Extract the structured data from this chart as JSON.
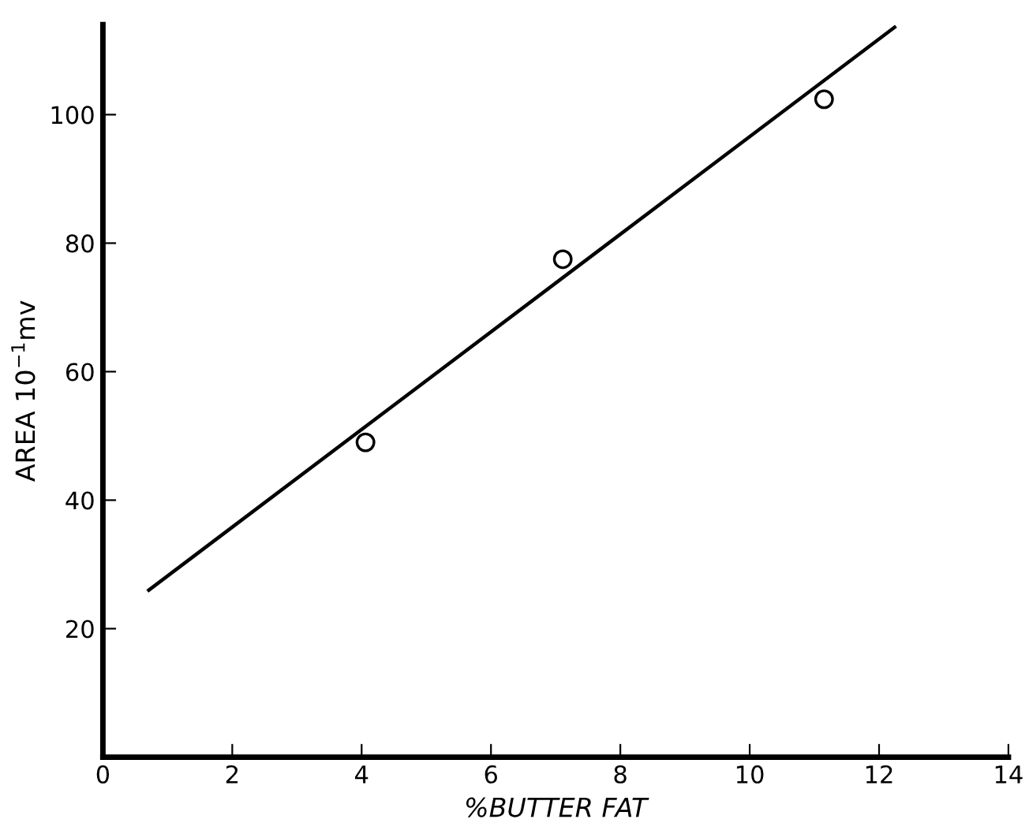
{
  "chart_data": {
    "type": "scatter",
    "xlabel": "%BUTTER FAT",
    "ylabel": "AREA 10$^{−1}$mv",
    "xlim": [
      0,
      14
    ],
    "xticks": [
      0,
      2,
      4,
      6,
      8,
      10,
      12,
      14
    ],
    "ylim": [
      0,
      114
    ],
    "yticks": [
      20,
      40,
      60,
      80,
      100
    ],
    "grid": false,
    "series": [
      {
        "marker": "circle",
        "color": "#000000",
        "x": [
          4.06,
          7.11,
          11.15
        ],
        "values": [
          49.0,
          77.5,
          102.4
        ]
      },
      {
        "type": "line",
        "color": "#000000",
        "line_style": "solid",
        "x": [
          0.71,
          12.24
        ],
        "values": [
          26.0,
          113.6
        ]
      }
    ]
  }
}
